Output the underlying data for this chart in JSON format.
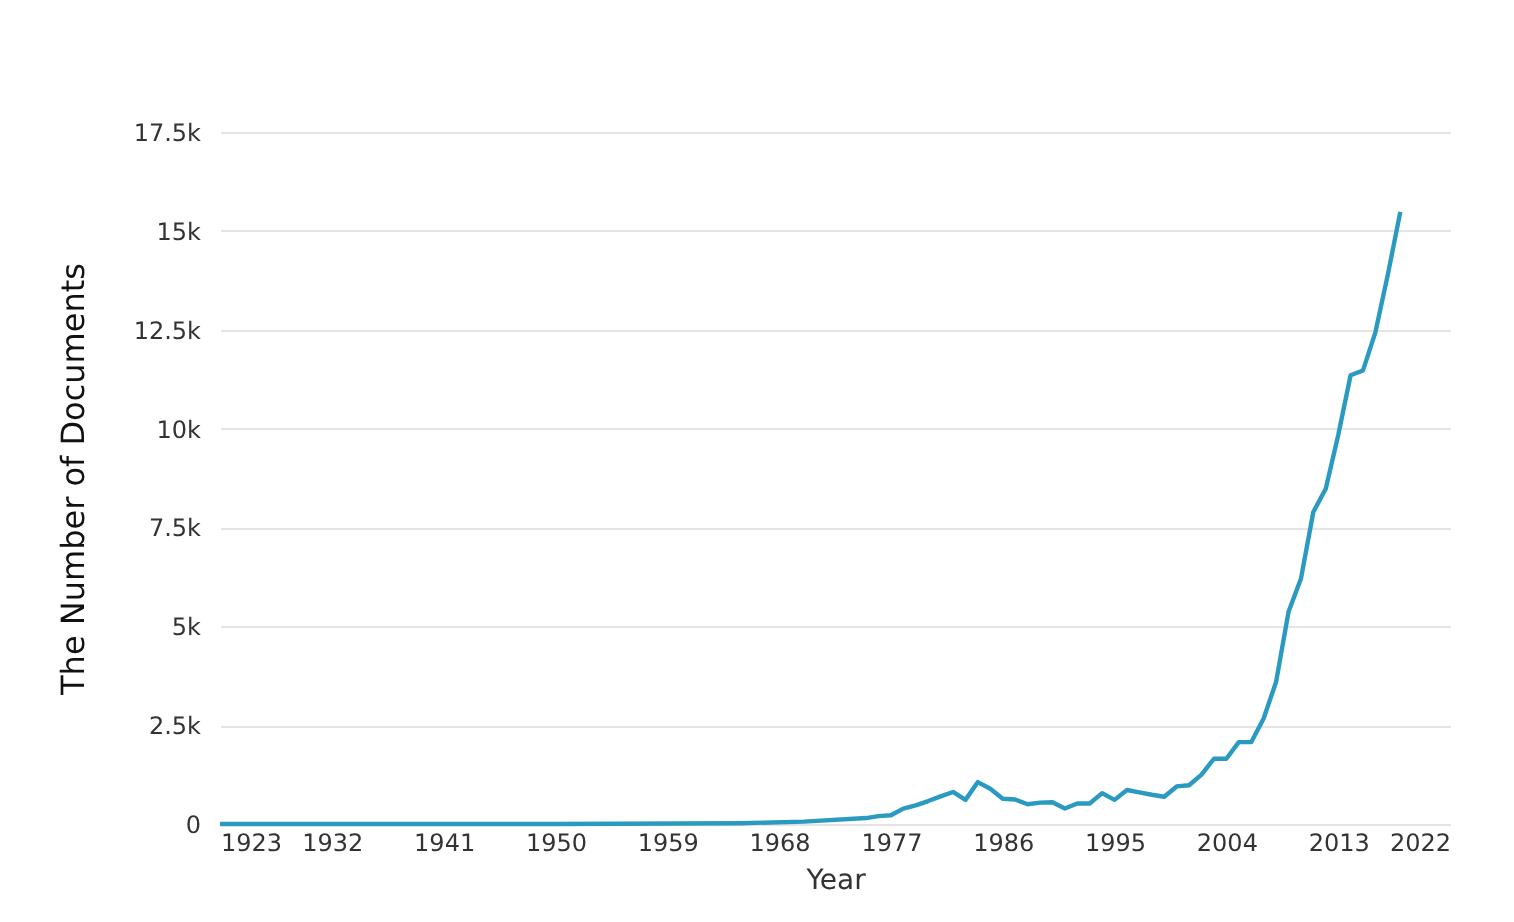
{
  "chart_data": {
    "type": "line",
    "xlabel": "Year",
    "ylabel": "The Number of Documents",
    "x": [
      1923,
      1950,
      1965,
      1970,
      1975,
      1976,
      1977,
      1978,
      1979,
      1980,
      1981,
      1982,
      1983,
      1984,
      1985,
      1986,
      1987,
      1988,
      1989,
      1990,
      1991,
      1992,
      1993,
      1994,
      1995,
      1996,
      1997,
      1998,
      1999,
      2000,
      2001,
      2002,
      2003,
      2004,
      2005,
      2006,
      2007,
      2008,
      2009,
      2010,
      2011,
      2012,
      2013,
      2014,
      2015,
      2016,
      2017,
      2018
    ],
    "series": [
      {
        "color": "#2b9ac0",
        "values": [
          0,
          0,
          20,
          60,
          150,
          200,
          220,
          390,
          470,
          580,
          700,
          810,
          610,
          1060,
          890,
          640,
          620,
          500,
          540,
          550,
          390,
          520,
          520,
          780,
          610,
          860,
          800,
          740,
          690,
          950,
          980,
          1250,
          1650,
          1650,
          2070,
          2070,
          2670,
          3590,
          5360,
          6200,
          7890,
          8480,
          9830,
          11350,
          11470,
          12440,
          13900,
          15480
        ]
      }
    ],
    "xlim": [
      1923,
      2022
    ],
    "xticks": [
      1923,
      1932,
      1941,
      1950,
      1959,
      1968,
      1977,
      1986,
      1995,
      2004,
      2013,
      2022
    ],
    "ylim": [
      0,
      17500
    ],
    "yticks": [
      0,
      {
        "value": 2500,
        "label": "2.5k"
      },
      {
        "value": 5000,
        "label": "5k"
      },
      {
        "value": 7500,
        "label": "7.5k"
      },
      {
        "value": 10000,
        "label": "10k"
      },
      {
        "value": 12500,
        "label": "12.5k"
      },
      {
        "value": 15000,
        "label": "15k"
      },
      {
        "value": 17500,
        "label": "17.5k"
      }
    ],
    "grid": "y",
    "marker": "none",
    "line_style": "solid"
  }
}
